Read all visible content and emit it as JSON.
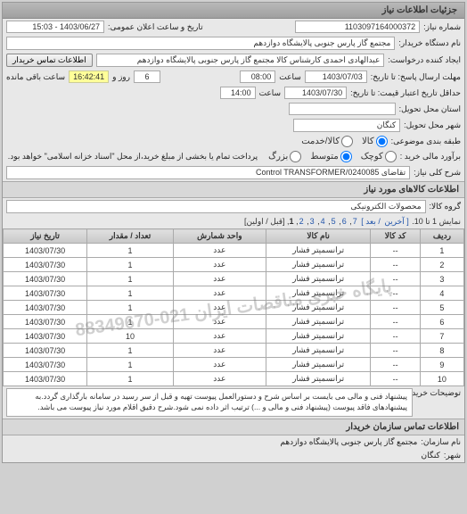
{
  "panel1_title": "جزئیات اطلاعات نیاز",
  "req_no_label": "شماره نیاز:",
  "req_no": "1103097164000372",
  "pub_date_label": "تاریخ و ساعت اعلان عمومی:",
  "pub_date": "1403/06/27 - 15:03",
  "buyer_label": "نام دستگاه خریدار:",
  "buyer": "مجتمع گاز پارس جنوبی  پالایشگاه دوازدهم",
  "creator_label": "ایجاد کننده درخواست:",
  "creator": "عبدالهادی احمدی کارشناس کالا مجتمع گاز پارس جنوبی  پالایشگاه دوازدهم",
  "contact_btn": "اطلاعات تماس خریدار",
  "deadline_label": "مهلت ارسال پاسخ: تا تاریخ:",
  "deadline_date": "1403/07/03",
  "hour_label": "ساعت",
  "deadline_hour": "08:00",
  "days_remain_label": "روز و",
  "days_remain": "6",
  "time_remain_label": "ساعت باقی مانده",
  "time_remain": "16:42:41",
  "valid_label": "حداقل تاریخ اعتبار قیمت: تا تاریخ:",
  "valid_date": "1403/07/30",
  "valid_hour": "14:00",
  "delivery_state_label": "استان محل تحویل:",
  "delivery_city_label": "شهر محل تحویل:",
  "kangan": "کنگان",
  "pkg_label": "طبقه بندی موضوعی:",
  "pkg_opt_goods": "کالا",
  "pkg_opt_service": "کالا/خدمت",
  "size_label": "برآورد مالی خرید :",
  "size_small": "کوچک",
  "size_med": "متوسط",
  "size_large": "بزرگ",
  "pay_note": "پرداخت تمام یا بخشی از مبلغ خرید،از محل \"اسناد خزانه اسلامی\" خواهد بود.",
  "desc_label": "شرح کلی نیاز:",
  "desc": "Control TRANSFORMER/تقاضای 0240085",
  "goods_title": "اطلاعات کالاهای مورد نیاز",
  "group_label": "گروه کالا:",
  "group": "محصولات الکترونیکی",
  "pager_text": "نمایش 1 تا 10.",
  "pager_last": "[ آخرین",
  "pager_next": "/ بعد ]",
  "pager_pages": [
    "7",
    "6",
    "5",
    "4",
    "3",
    "2"
  ],
  "pager_current": "1",
  "pager_prev": "[قبل / اولین]",
  "th_row": "ردیف",
  "th_code": "کد کالا",
  "th_name": "نام کالا",
  "th_unit": "واحد شمارش",
  "th_qty": "تعداد / مقدار",
  "th_date": "تاریخ نیاز",
  "rows": [
    {
      "n": "1",
      "code": "--",
      "name": "ترانسمیتر فشار",
      "unit": "عدد",
      "qty": "1",
      "date": "1403/07/30"
    },
    {
      "n": "2",
      "code": "--",
      "name": "ترانسمیتر فشار",
      "unit": "عدد",
      "qty": "1",
      "date": "1403/07/30"
    },
    {
      "n": "3",
      "code": "--",
      "name": "ترانسمیتر فشار",
      "unit": "عدد",
      "qty": "1",
      "date": "1403/07/30"
    },
    {
      "n": "4",
      "code": "--",
      "name": "ترانسمیتر فشار",
      "unit": "عدد",
      "qty": "1",
      "date": "1403/07/30"
    },
    {
      "n": "5",
      "code": "--",
      "name": "ترانسمیتر فشار",
      "unit": "عدد",
      "qty": "1",
      "date": "1403/07/30"
    },
    {
      "n": "6",
      "code": "--",
      "name": "ترانسمیتر فشار",
      "unit": "عدد",
      "qty": "1",
      "date": "1403/07/30"
    },
    {
      "n": "7",
      "code": "--",
      "name": "ترانسمیتر فشار",
      "unit": "عدد",
      "qty": "10",
      "date": "1403/07/30"
    },
    {
      "n": "8",
      "code": "--",
      "name": "ترانسمیتر فشار",
      "unit": "عدد",
      "qty": "1",
      "date": "1403/07/30"
    },
    {
      "n": "9",
      "code": "--",
      "name": "ترانسمیتر فشار",
      "unit": "عدد",
      "qty": "1",
      "date": "1403/07/30"
    },
    {
      "n": "10",
      "code": "--",
      "name": "ترانسمیتر فشار",
      "unit": "عدد",
      "qty": "1",
      "date": "1403/07/30"
    }
  ],
  "watermark": "پایگاه خبری مناقصات ایران\n021-88349670",
  "note_label": "توضیحات خریدار:",
  "note": "پیشنهاد فنی و مالی می بایست بر اساس شرح و دستورالعمل پیوست تهیه و قبل از سر رسید در سامانه بارگذاری گردد.به پیشنهادهای فاقد پیوست (پیشنهاد فنی و مالی و ...) ترتیب اثر داده نمی شود.شرح دقیق اقلام مورد نیاز پیوست می باشد.",
  "org_title": "اطلاعات تماس سازمان خریدار",
  "org_name_label": "نام سازمان:",
  "org_name": "مجتمع گاز پارس جنوبی پالایشگاه دوازدهم",
  "org_city_label": "شهر:",
  "org_city": "کنگان"
}
